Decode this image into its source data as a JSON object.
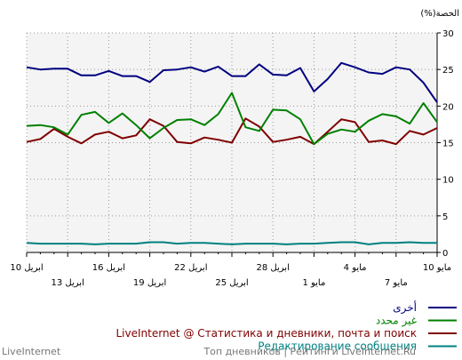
{
  "chart_data": {
    "type": "line",
    "ylabel": "(%)الحصة",
    "ylim": [
      0,
      30
    ],
    "y_ticks": [
      "0",
      "5",
      "10",
      "15",
      "20",
      "25",
      "30"
    ],
    "x_count": 31,
    "x_ticks_top": [
      {
        "i": 0,
        "label": "10 مايو"
      },
      {
        "i": 6,
        "label": "4 مايو"
      },
      {
        "i": 12,
        "label": "28 ابريل"
      },
      {
        "i": 18,
        "label": "22 ابريل"
      },
      {
        "i": 24,
        "label": "16 ابريل"
      },
      {
        "i": 30,
        "label": "10 ابريل"
      }
    ],
    "x_ticks_bottom": [
      {
        "i": 3,
        "label": "7 مايو"
      },
      {
        "i": 9,
        "label": "1 مايو"
      },
      {
        "i": 15,
        "label": "25 ابريل"
      },
      {
        "i": 21,
        "label": "19 ابريل"
      },
      {
        "i": 27,
        "label": "13 ابريل"
      }
    ],
    "grid": true,
    "series": [
      {
        "name": "أخرى",
        "color": "#000080",
        "values": [
          20.5,
          23.2,
          25.0,
          25.3,
          24.4,
          24.6,
          25.3,
          25.9,
          23.7,
          22.0,
          25.2,
          24.2,
          24.3,
          25.7,
          24.1,
          24.1,
          25.4,
          24.7,
          25.3,
          25.0,
          24.9,
          23.3,
          24.1,
          24.1,
          24.8,
          24.2,
          24.2,
          25.1,
          25.1,
          25.0,
          25.3
        ]
      },
      {
        "name": "غير محدد",
        "color": "#008000",
        "values": [
          17.8,
          20.4,
          17.6,
          18.6,
          18.9,
          18.0,
          16.5,
          16.8,
          16.2,
          14.8,
          18.2,
          19.4,
          19.5,
          16.6,
          17.1,
          21.8,
          18.9,
          17.4,
          18.2,
          18.1,
          17.0,
          15.6,
          17.4,
          19.0,
          17.7,
          19.2,
          18.8,
          16.1,
          17.1,
          17.4,
          17.3
        ]
      },
      {
        "name": "LiveInternet @ Статистика и дневники, почта и поиск",
        "color": "#800000",
        "values": [
          17.0,
          16.1,
          16.6,
          14.8,
          15.3,
          15.1,
          17.8,
          18.2,
          16.5,
          14.8,
          15.8,
          15.4,
          15.1,
          17.2,
          18.3,
          15.0,
          15.4,
          15.7,
          14.9,
          15.1,
          17.3,
          18.2,
          16.0,
          15.6,
          16.5,
          16.1,
          14.9,
          15.8,
          16.9,
          15.5,
          15.1
        ]
      },
      {
        "name": "Редактирование сообщения",
        "color": "#008080",
        "values": [
          1.3,
          1.3,
          1.4,
          1.3,
          1.3,
          1.1,
          1.4,
          1.4,
          1.3,
          1.2,
          1.2,
          1.1,
          1.2,
          1.2,
          1.2,
          1.1,
          1.2,
          1.3,
          1.3,
          1.2,
          1.4,
          1.4,
          1.2,
          1.2,
          1.2,
          1.1,
          1.2,
          1.2,
          1.2,
          1.2,
          1.3
        ]
      }
    ]
  },
  "footer": {
    "brand": "LiveInternet",
    "links": "Топ дневников | Рейтинги LiveInternet.Ru"
  }
}
